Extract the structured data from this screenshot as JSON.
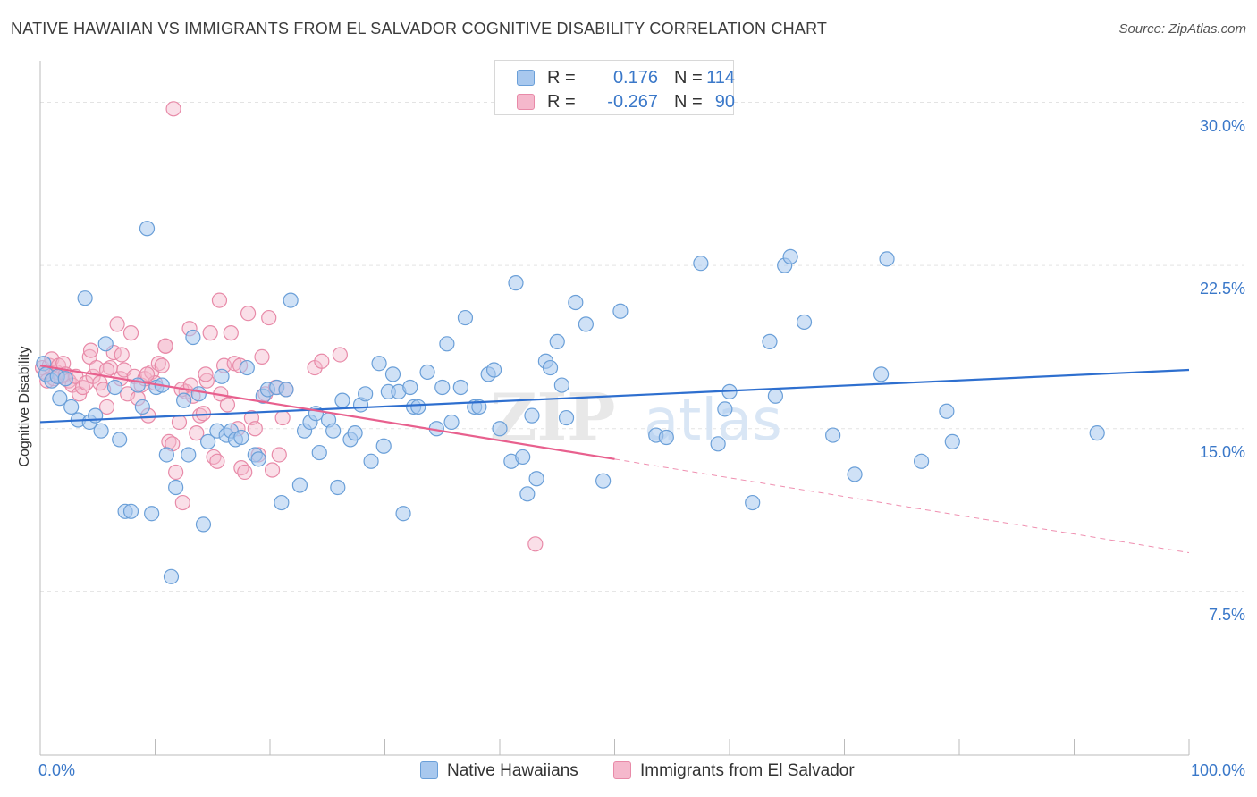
{
  "title": "NATIVE HAWAIIAN VS IMMIGRANTS FROM EL SALVADOR COGNITIVE DISABILITY CORRELATION CHART",
  "source": "Source: ZipAtlas.com",
  "watermark": "ZIPatlas",
  "legend_top": {
    "rows": [
      {
        "r_label": "R =",
        "r_value": "0.176",
        "n_label": "N =",
        "n_value": "114"
      },
      {
        "r_label": "R =",
        "r_value": "-0.267",
        "n_label": "N =",
        "n_value": "90"
      }
    ]
  },
  "colors": {
    "blue_fill": "#a8c8ee",
    "blue_stroke": "#6a9fd8",
    "blue_line": "#2e6fcf",
    "pink_fill": "#f5b8cc",
    "pink_stroke": "#e88aa8",
    "pink_line": "#e8608e",
    "axis_text": "#3a78c9",
    "grid": "#e3e3e3"
  },
  "chart_data": {
    "type": "scatter",
    "title": "NATIVE HAWAIIAN VS IMMIGRANTS FROM EL SALVADOR COGNITIVE DISABILITY CORRELATION CHART",
    "xlabel": "",
    "ylabel": "Cognitive Disability",
    "x_tick_labels": [
      "0.0%",
      "100.0%"
    ],
    "y_tick_labels": [
      "7.5%",
      "15.0%",
      "22.5%",
      "30.0%"
    ],
    "xlim": [
      0,
      100
    ],
    "ylim": [
      0,
      31.5
    ],
    "y_ticks": [
      7.5,
      15.0,
      22.5,
      30.0
    ],
    "grid": true,
    "legend_position": "bottom",
    "series": [
      {
        "name": "Native Hawaiians",
        "color": "#a8c8ee",
        "r": 0.176,
        "n": 114,
        "trend": {
          "x": [
            0,
            100
          ],
          "y": [
            15.3,
            17.7
          ],
          "dashed_from": null
        },
        "points": [
          [
            0.3,
            18.0
          ],
          [
            0.5,
            17.5
          ],
          [
            1.0,
            17.2
          ],
          [
            1.5,
            17.4
          ],
          [
            1.7,
            16.4
          ],
          [
            2.2,
            17.3
          ],
          [
            2.7,
            16.0
          ],
          [
            3.3,
            15.4
          ],
          [
            3.9,
            21.0
          ],
          [
            4.3,
            15.3
          ],
          [
            4.8,
            15.6
          ],
          [
            5.3,
            14.9
          ],
          [
            5.7,
            18.9
          ],
          [
            6.5,
            16.9
          ],
          [
            6.9,
            14.5
          ],
          [
            7.4,
            11.2
          ],
          [
            7.9,
            11.2
          ],
          [
            8.5,
            17.0
          ],
          [
            8.9,
            16.0
          ],
          [
            9.3,
            24.2
          ],
          [
            9.7,
            11.1
          ],
          [
            10.1,
            16.9
          ],
          [
            10.6,
            17.0
          ],
          [
            11.0,
            13.8
          ],
          [
            11.4,
            8.2
          ],
          [
            11.8,
            12.3
          ],
          [
            12.5,
            16.3
          ],
          [
            12.9,
            13.8
          ],
          [
            13.3,
            19.2
          ],
          [
            13.8,
            16.6
          ],
          [
            14.2,
            10.6
          ],
          [
            14.6,
            14.4
          ],
          [
            15.4,
            14.9
          ],
          [
            15.8,
            17.4
          ],
          [
            16.2,
            14.7
          ],
          [
            16.6,
            14.9
          ],
          [
            17.0,
            14.5
          ],
          [
            17.5,
            14.6
          ],
          [
            18.0,
            17.8
          ],
          [
            18.7,
            13.8
          ],
          [
            19.0,
            13.6
          ],
          [
            19.4,
            16.5
          ],
          [
            19.8,
            16.8
          ],
          [
            20.6,
            16.9
          ],
          [
            21.0,
            11.6
          ],
          [
            21.4,
            16.8
          ],
          [
            21.8,
            20.9
          ],
          [
            22.6,
            12.4
          ],
          [
            23.0,
            14.9
          ],
          [
            23.5,
            15.3
          ],
          [
            24.0,
            15.7
          ],
          [
            24.3,
            13.9
          ],
          [
            25.1,
            15.4
          ],
          [
            25.5,
            14.9
          ],
          [
            25.9,
            12.3
          ],
          [
            26.3,
            16.3
          ],
          [
            27.0,
            14.5
          ],
          [
            27.4,
            14.8
          ],
          [
            27.9,
            16.1
          ],
          [
            28.3,
            16.6
          ],
          [
            28.8,
            13.5
          ],
          [
            29.5,
            18.0
          ],
          [
            29.9,
            14.2
          ],
          [
            30.3,
            16.7
          ],
          [
            30.7,
            17.5
          ],
          [
            31.2,
            16.7
          ],
          [
            31.6,
            11.1
          ],
          [
            32.2,
            16.9
          ],
          [
            32.5,
            16.0
          ],
          [
            32.9,
            16.0
          ],
          [
            33.7,
            17.6
          ],
          [
            34.5,
            15.0
          ],
          [
            35.0,
            16.9
          ],
          [
            35.4,
            18.9
          ],
          [
            35.8,
            15.3
          ],
          [
            36.6,
            16.9
          ],
          [
            37.0,
            20.1
          ],
          [
            37.8,
            16.0
          ],
          [
            38.2,
            16.0
          ],
          [
            39.0,
            17.5
          ],
          [
            39.5,
            17.7
          ],
          [
            40.0,
            15.0
          ],
          [
            41.0,
            13.5
          ],
          [
            41.4,
            21.7
          ],
          [
            42.0,
            13.7
          ],
          [
            42.4,
            12.0
          ],
          [
            42.8,
            15.6
          ],
          [
            43.2,
            12.7
          ],
          [
            44.0,
            18.1
          ],
          [
            44.4,
            17.8
          ],
          [
            45.0,
            19.0
          ],
          [
            45.4,
            17.0
          ],
          [
            45.8,
            15.5
          ],
          [
            46.6,
            20.8
          ],
          [
            47.5,
            19.8
          ],
          [
            49.0,
            12.6
          ],
          [
            50.5,
            20.4
          ],
          [
            53.6,
            14.7
          ],
          [
            54.5,
            14.6
          ],
          [
            57.5,
            22.6
          ],
          [
            59.0,
            14.3
          ],
          [
            59.6,
            15.9
          ],
          [
            60.0,
            16.7
          ],
          [
            62.0,
            11.6
          ],
          [
            63.5,
            19.0
          ],
          [
            64.0,
            16.5
          ],
          [
            64.8,
            22.5
          ],
          [
            65.3,
            22.9
          ],
          [
            66.5,
            19.9
          ],
          [
            69.0,
            14.7
          ],
          [
            70.9,
            12.9
          ],
          [
            73.2,
            17.5
          ],
          [
            73.7,
            22.8
          ],
          [
            76.7,
            13.5
          ],
          [
            78.9,
            15.8
          ],
          [
            79.4,
            14.4
          ],
          [
            92.0,
            14.8
          ]
        ]
      },
      {
        "name": "Immigrants from El Salvador",
        "color": "#f5b8cc",
        "r": -0.267,
        "n": 90,
        "trend": {
          "x": [
            0,
            100
          ],
          "y": [
            17.9,
            9.3
          ],
          "dashed_from": 50
        },
        "points": [
          [
            0.2,
            17.8
          ],
          [
            0.4,
            17.6
          ],
          [
            0.6,
            17.2
          ],
          [
            0.8,
            17.9
          ],
          [
            1.0,
            18.2
          ],
          [
            1.2,
            17.3
          ],
          [
            1.4,
            17.6
          ],
          [
            1.6,
            17.9
          ],
          [
            1.8,
            17.4
          ],
          [
            2.0,
            18.0
          ],
          [
            2.2,
            17.5
          ],
          [
            2.5,
            17.2
          ],
          [
            2.8,
            17.0
          ],
          [
            3.1,
            17.4
          ],
          [
            3.4,
            16.6
          ],
          [
            3.7,
            16.9
          ],
          [
            4.0,
            17.1
          ],
          [
            4.3,
            18.3
          ],
          [
            4.6,
            17.4
          ],
          [
            4.9,
            17.8
          ],
          [
            5.2,
            17.1
          ],
          [
            5.5,
            16.8
          ],
          [
            5.8,
            16.0
          ],
          [
            6.1,
            17.8
          ],
          [
            6.4,
            18.5
          ],
          [
            6.7,
            19.8
          ],
          [
            7.0,
            17.3
          ],
          [
            7.3,
            17.7
          ],
          [
            7.6,
            16.6
          ],
          [
            7.9,
            19.4
          ],
          [
            8.2,
            17.4
          ],
          [
            8.5,
            16.4
          ],
          [
            8.8,
            17.0
          ],
          [
            9.1,
            17.3
          ],
          [
            9.4,
            15.6
          ],
          [
            9.7,
            17.6
          ],
          [
            10.0,
            17.1
          ],
          [
            10.3,
            18.0
          ],
          [
            10.6,
            17.9
          ],
          [
            10.9,
            18.8
          ],
          [
            11.2,
            14.4
          ],
          [
            11.5,
            14.3
          ],
          [
            11.8,
            13.0
          ],
          [
            12.1,
            15.3
          ],
          [
            12.4,
            11.6
          ],
          [
            12.7,
            16.7
          ],
          [
            13.0,
            19.6
          ],
          [
            13.3,
            16.5
          ],
          [
            13.6,
            14.8
          ],
          [
            13.9,
            15.6
          ],
          [
            14.2,
            15.7
          ],
          [
            14.5,
            17.2
          ],
          [
            14.8,
            19.4
          ],
          [
            15.1,
            13.7
          ],
          [
            15.4,
            13.5
          ],
          [
            15.7,
            16.6
          ],
          [
            16.0,
            17.9
          ],
          [
            16.3,
            16.1
          ],
          [
            16.6,
            19.4
          ],
          [
            16.9,
            18.0
          ],
          [
            17.2,
            15.0
          ],
          [
            17.5,
            13.2
          ],
          [
            17.8,
            13.0
          ],
          [
            18.1,
            20.3
          ],
          [
            18.4,
            15.5
          ],
          [
            18.7,
            15.0
          ],
          [
            19.0,
            13.8
          ],
          [
            19.3,
            18.3
          ],
          [
            19.6,
            16.6
          ],
          [
            19.9,
            20.1
          ],
          [
            20.2,
            13.1
          ],
          [
            20.5,
            16.9
          ],
          [
            20.8,
            13.8
          ],
          [
            21.1,
            15.5
          ],
          [
            21.4,
            16.8
          ],
          [
            11.6,
            29.7
          ],
          [
            15.6,
            20.9
          ],
          [
            7.1,
            18.4
          ],
          [
            4.4,
            18.6
          ],
          [
            5.8,
            17.7
          ],
          [
            9.3,
            17.5
          ],
          [
            10.9,
            18.8
          ],
          [
            12.3,
            16.8
          ],
          [
            13.1,
            17.0
          ],
          [
            14.4,
            17.5
          ],
          [
            17.4,
            17.9
          ],
          [
            23.9,
            17.8
          ],
          [
            24.5,
            18.1
          ],
          [
            26.1,
            18.4
          ],
          [
            43.1,
            9.7
          ]
        ]
      }
    ]
  }
}
